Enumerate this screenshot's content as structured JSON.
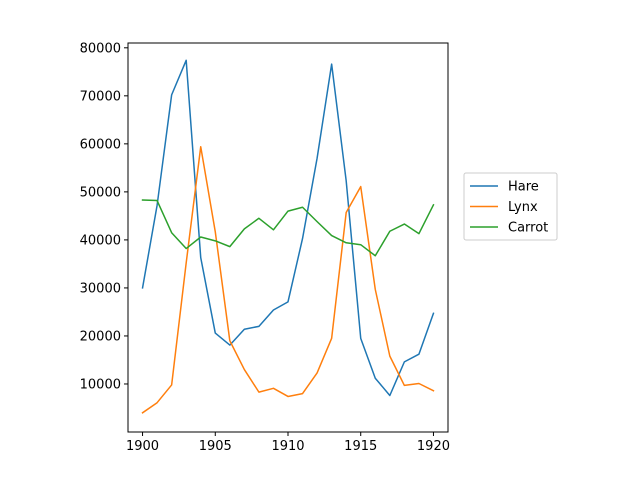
{
  "chart_data": {
    "type": "line",
    "title": "",
    "xlabel": "",
    "ylabel": "",
    "x": [
      1900,
      1901,
      1902,
      1903,
      1904,
      1905,
      1906,
      1907,
      1908,
      1909,
      1910,
      1911,
      1912,
      1913,
      1914,
      1915,
      1916,
      1917,
      1918,
      1919,
      1920
    ],
    "xlim": [
      1899,
      1921
    ],
    "ylim": [
      0,
      81000
    ],
    "xticks": [
      1900,
      1905,
      1910,
      1915,
      1920
    ],
    "yticks": [
      10000,
      20000,
      30000,
      40000,
      50000,
      60000,
      70000,
      80000
    ],
    "xtick_labels": [
      "1900",
      "1905",
      "1910",
      "1915",
      "1920"
    ],
    "ytick_labels": [
      "10000",
      "20000",
      "30000",
      "40000",
      "50000",
      "60000",
      "70000",
      "80000"
    ],
    "grid": false,
    "legend": "right-outside",
    "series": [
      {
        "name": "Hare",
        "color": "#1f77b4",
        "values": [
          30000,
          47200,
          70200,
          77400,
          36300,
          20600,
          18100,
          21400,
          22000,
          25400,
          27100,
          40300,
          57000,
          76600,
          52300,
          19500,
          11200,
          7600,
          14600,
          16200,
          24700
        ]
      },
      {
        "name": "Lynx",
        "color": "#ff7f0e",
        "values": [
          4000,
          6100,
          9800,
          35200,
          59400,
          41700,
          19000,
          13000,
          8300,
          9100,
          7400,
          8000,
          12300,
          19500,
          45700,
          51100,
          29700,
          15800,
          9700,
          10100,
          8600
        ]
      },
      {
        "name": "Carrot",
        "color": "#2ca02c",
        "values": [
          48300,
          48200,
          41500,
          38200,
          40600,
          39800,
          38600,
          42300,
          44500,
          42100,
          46000,
          46800,
          43800,
          40900,
          39400,
          39000,
          36700,
          41800,
          43300,
          41300,
          47300
        ]
      }
    ]
  }
}
